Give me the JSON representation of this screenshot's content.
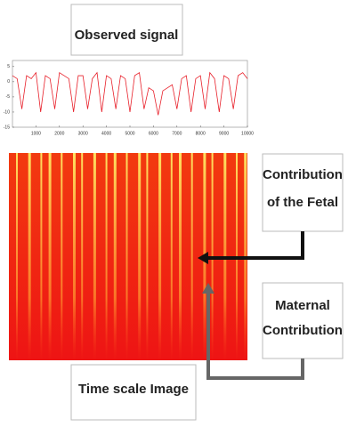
{
  "labels": {
    "observed": "Observed signal",
    "fetal": [
      "Contribution",
      "of the Fetal"
    ],
    "maternal": [
      "Maternal",
      "Contribution"
    ],
    "time_scale": "Time scale Image"
  },
  "chart_data": {
    "type": "line",
    "color": "#e8202a",
    "x": [
      0,
      200,
      400,
      600,
      800,
      1000,
      1200,
      1400,
      1600,
      1800,
      2000,
      2200,
      2400,
      2600,
      2800,
      3000,
      3200,
      3400,
      3600,
      3800,
      4000,
      4200,
      4400,
      4600,
      4800,
      5000,
      5200,
      5400,
      5600,
      5800,
      6000,
      6200,
      6400,
      6600,
      6800,
      7000,
      7200,
      7400,
      7600,
      7800,
      8000,
      8200,
      8400,
      8600,
      8800,
      9000,
      9200,
      9400,
      9600,
      9800,
      10000
    ],
    "values": [
      2,
      1,
      -9,
      2,
      1,
      3,
      -10,
      2,
      1,
      -9,
      3,
      2,
      1,
      -10,
      2,
      2,
      -9,
      1,
      3,
      -10,
      2,
      1,
      -9,
      2,
      1,
      -10,
      2,
      3,
      -9,
      -2,
      -3,
      -11,
      -3,
      -2,
      -1,
      -9,
      1,
      2,
      -10,
      1,
      2,
      -9,
      3,
      1,
      -10,
      2,
      1,
      -9,
      2,
      3,
      1
    ],
    "xlim": [
      0,
      10000
    ],
    "xticks": [
      1000,
      2000,
      3000,
      4000,
      5000,
      6000,
      7000,
      8000,
      9000,
      10000
    ],
    "ylim": [
      -15,
      7
    ],
    "yticks": [
      5,
      0,
      -5,
      -10,
      -15
    ]
  }
}
